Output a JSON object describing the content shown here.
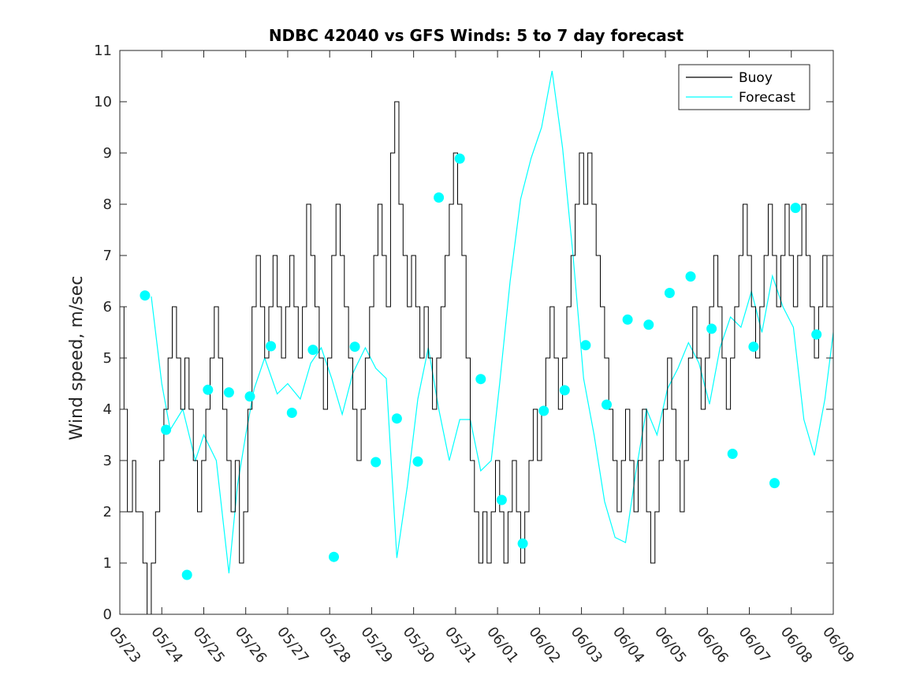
{
  "chart_data": {
    "type": "line",
    "title": "NDBC 42040 vs GFS Winds: 5 to 7 day forecast",
    "xlabel": "",
    "ylabel": "Wind speed, m/sec",
    "x_ticks": [
      "05/23",
      "05/24",
      "05/25",
      "05/26",
      "05/27",
      "05/28",
      "05/29",
      "05/30",
      "05/31",
      "06/01",
      "06/02",
      "06/03",
      "06/04",
      "06/05",
      "06/06",
      "06/07",
      "06/08",
      "06/09"
    ],
    "y_ticks": [
      "0",
      "1",
      "2",
      "3",
      "4",
      "5",
      "6",
      "7",
      "8",
      "9",
      "10",
      "11"
    ],
    "xlim": [
      0,
      17
    ],
    "ylim": [
      0,
      11
    ],
    "grid": false,
    "legend_position": "top-right",
    "legend": [
      "Buoy",
      "Forecast"
    ],
    "colors": {
      "buoy": "#000000",
      "forecast": "#00FFFF",
      "axis": "#262626"
    },
    "series": [
      {
        "name": "Buoy",
        "type": "line",
        "note_units": "x in days since 05/23 00:00",
        "points": [
          [
            0.0,
            6
          ],
          [
            0.1,
            4
          ],
          [
            0.18,
            2
          ],
          [
            0.3,
            3
          ],
          [
            0.38,
            2
          ],
          [
            0.55,
            1
          ],
          [
            0.65,
            0
          ],
          [
            0.75,
            1
          ],
          [
            0.85,
            2
          ],
          [
            0.95,
            3
          ],
          [
            1.05,
            4
          ],
          [
            1.15,
            5
          ],
          [
            1.25,
            6
          ],
          [
            1.35,
            5
          ],
          [
            1.45,
            4
          ],
          [
            1.55,
            5
          ],
          [
            1.65,
            4
          ],
          [
            1.75,
            3
          ],
          [
            1.85,
            2
          ],
          [
            1.95,
            3
          ],
          [
            2.05,
            4
          ],
          [
            2.15,
            5
          ],
          [
            2.25,
            6
          ],
          [
            2.35,
            5
          ],
          [
            2.45,
            4
          ],
          [
            2.55,
            3
          ],
          [
            2.65,
            2
          ],
          [
            2.75,
            3
          ],
          [
            2.85,
            1
          ],
          [
            2.95,
            2
          ],
          [
            3.05,
            4
          ],
          [
            3.15,
            6
          ],
          [
            3.25,
            7
          ],
          [
            3.35,
            6
          ],
          [
            3.45,
            5
          ],
          [
            3.55,
            6
          ],
          [
            3.65,
            7
          ],
          [
            3.75,
            6
          ],
          [
            3.85,
            5
          ],
          [
            3.95,
            6
          ],
          [
            4.05,
            7
          ],
          [
            4.15,
            6
          ],
          [
            4.25,
            5
          ],
          [
            4.35,
            6
          ],
          [
            4.45,
            8
          ],
          [
            4.55,
            7
          ],
          [
            4.65,
            6
          ],
          [
            4.75,
            5
          ],
          [
            4.85,
            4
          ],
          [
            4.95,
            5
          ],
          [
            5.05,
            7
          ],
          [
            5.15,
            8
          ],
          [
            5.25,
            7
          ],
          [
            5.35,
            6
          ],
          [
            5.45,
            5
          ],
          [
            5.55,
            4
          ],
          [
            5.65,
            3
          ],
          [
            5.75,
            4
          ],
          [
            5.85,
            5
          ],
          [
            5.95,
            6
          ],
          [
            6.05,
            7
          ],
          [
            6.15,
            8
          ],
          [
            6.25,
            7
          ],
          [
            6.35,
            6
          ],
          [
            6.45,
            9
          ],
          [
            6.55,
            10
          ],
          [
            6.65,
            8
          ],
          [
            6.75,
            7
          ],
          [
            6.85,
            6
          ],
          [
            6.95,
            7
          ],
          [
            7.05,
            6
          ],
          [
            7.15,
            5
          ],
          [
            7.25,
            6
          ],
          [
            7.35,
            5
          ],
          [
            7.45,
            4
          ],
          [
            7.55,
            5
          ],
          [
            7.65,
            6
          ],
          [
            7.75,
            7
          ],
          [
            7.85,
            8
          ],
          [
            7.95,
            9
          ],
          [
            8.05,
            8
          ],
          [
            8.15,
            7
          ],
          [
            8.25,
            5
          ],
          [
            8.35,
            3
          ],
          [
            8.45,
            2
          ],
          [
            8.55,
            1
          ],
          [
            8.65,
            2
          ],
          [
            8.75,
            1
          ],
          [
            8.85,
            2
          ],
          [
            8.95,
            3
          ],
          [
            9.05,
            2
          ],
          [
            9.15,
            1
          ],
          [
            9.25,
            2
          ],
          [
            9.35,
            3
          ],
          [
            9.45,
            2
          ],
          [
            9.55,
            1
          ],
          [
            9.65,
            2
          ],
          [
            9.75,
            3
          ],
          [
            9.85,
            4
          ],
          [
            9.95,
            3
          ],
          [
            10.05,
            4
          ],
          [
            10.15,
            5
          ],
          [
            10.25,
            6
          ],
          [
            10.35,
            5
          ],
          [
            10.45,
            4
          ],
          [
            10.55,
            5
          ],
          [
            10.65,
            6
          ],
          [
            10.75,
            7
          ],
          [
            10.85,
            8
          ],
          [
            10.95,
            9
          ],
          [
            11.05,
            8
          ],
          [
            11.15,
            9
          ],
          [
            11.25,
            8
          ],
          [
            11.35,
            7
          ],
          [
            11.45,
            6
          ],
          [
            11.55,
            5
          ],
          [
            11.65,
            4
          ],
          [
            11.75,
            3
          ],
          [
            11.85,
            2
          ],
          [
            11.95,
            3
          ],
          [
            12.05,
            4
          ],
          [
            12.15,
            3
          ],
          [
            12.25,
            2
          ],
          [
            12.35,
            3
          ],
          [
            12.45,
            4
          ],
          [
            12.55,
            2
          ],
          [
            12.65,
            1
          ],
          [
            12.75,
            2
          ],
          [
            12.85,
            3
          ],
          [
            12.95,
            4
          ],
          [
            13.05,
            5
          ],
          [
            13.15,
            4
          ],
          [
            13.25,
            3
          ],
          [
            13.35,
            2
          ],
          [
            13.45,
            3
          ],
          [
            13.55,
            5
          ],
          [
            13.65,
            6
          ],
          [
            13.75,
            5
          ],
          [
            13.85,
            4
          ],
          [
            13.95,
            5
          ],
          [
            14.05,
            6
          ],
          [
            14.15,
            7
          ],
          [
            14.25,
            6
          ],
          [
            14.35,
            5
          ],
          [
            14.45,
            4
          ],
          [
            14.55,
            5
          ],
          [
            14.65,
            6
          ],
          [
            14.75,
            7
          ],
          [
            14.85,
            8
          ],
          [
            14.95,
            7
          ],
          [
            15.05,
            6
          ],
          [
            15.15,
            5
          ],
          [
            15.25,
            6
          ],
          [
            15.35,
            7
          ],
          [
            15.45,
            8
          ],
          [
            15.55,
            7
          ],
          [
            15.65,
            6
          ],
          [
            15.75,
            7
          ],
          [
            15.85,
            8
          ],
          [
            15.95,
            7
          ],
          [
            16.05,
            6
          ],
          [
            16.15,
            7
          ],
          [
            16.25,
            8
          ],
          [
            16.35,
            7
          ],
          [
            16.45,
            6
          ],
          [
            16.55,
            5
          ],
          [
            16.65,
            6
          ],
          [
            16.75,
            7
          ],
          [
            16.85,
            6
          ],
          [
            17.0,
            6
          ]
        ]
      },
      {
        "name": "Forecast",
        "type": "line",
        "note_units": "x in days since 05/23 00:00",
        "points": [
          [
            0.75,
            6.2
          ],
          [
            1.0,
            4.5
          ],
          [
            1.2,
            3.6
          ],
          [
            1.5,
            4.0
          ],
          [
            1.8,
            3.0
          ],
          [
            2.0,
            3.5
          ],
          [
            2.3,
            3.0
          ],
          [
            2.6,
            0.8
          ],
          [
            2.8,
            2.5
          ],
          [
            3.0,
            3.5
          ],
          [
            3.2,
            4.4
          ],
          [
            3.45,
            5.0
          ],
          [
            3.75,
            4.3
          ],
          [
            4.0,
            4.5
          ],
          [
            4.3,
            4.2
          ],
          [
            4.55,
            4.9
          ],
          [
            4.8,
            5.2
          ],
          [
            5.05,
            4.6
          ],
          [
            5.3,
            3.9
          ],
          [
            5.55,
            4.7
          ],
          [
            5.85,
            5.2
          ],
          [
            6.1,
            4.8
          ],
          [
            6.35,
            4.6
          ],
          [
            6.6,
            1.1
          ],
          [
            6.85,
            2.5
          ],
          [
            7.1,
            4.2
          ],
          [
            7.35,
            5.2
          ],
          [
            7.6,
            4.0
          ],
          [
            7.85,
            3.0
          ],
          [
            8.1,
            3.8
          ],
          [
            8.35,
            3.8
          ],
          [
            8.6,
            2.8
          ],
          [
            8.85,
            3.0
          ],
          [
            9.05,
            4.5
          ],
          [
            9.3,
            6.5
          ],
          [
            9.55,
            8.1
          ],
          [
            9.8,
            8.9
          ],
          [
            10.05,
            9.5
          ],
          [
            10.3,
            10.6
          ],
          [
            10.55,
            9.1
          ],
          [
            10.8,
            7.0
          ],
          [
            11.05,
            4.6
          ],
          [
            11.3,
            3.5
          ],
          [
            11.55,
            2.2
          ],
          [
            11.8,
            1.5
          ],
          [
            12.05,
            1.4
          ],
          [
            12.3,
            2.8
          ],
          [
            12.55,
            4.0
          ],
          [
            12.8,
            3.5
          ],
          [
            13.05,
            4.4
          ],
          [
            13.3,
            4.8
          ],
          [
            13.55,
            5.3
          ],
          [
            13.8,
            4.9
          ],
          [
            14.05,
            4.1
          ],
          [
            14.3,
            5.2
          ],
          [
            14.55,
            5.8
          ],
          [
            14.8,
            5.6
          ],
          [
            15.05,
            6.3
          ],
          [
            15.3,
            5.5
          ],
          [
            15.55,
            6.6
          ],
          [
            15.8,
            6.0
          ],
          [
            16.05,
            5.6
          ],
          [
            16.3,
            3.8
          ],
          [
            16.55,
            3.1
          ],
          [
            16.8,
            4.2
          ],
          [
            17.0,
            5.5
          ]
        ]
      },
      {
        "name": "Forecast",
        "type": "scatter",
        "markers": true,
        "note_units": "x in days since 05/23 00:00",
        "points": [
          [
            0.6,
            6.22
          ],
          [
            1.1,
            3.6
          ],
          [
            1.6,
            0.77
          ],
          [
            2.1,
            4.38
          ],
          [
            2.6,
            4.33
          ],
          [
            3.1,
            4.25
          ],
          [
            3.6,
            5.23
          ],
          [
            4.1,
            3.93
          ],
          [
            4.6,
            5.16
          ],
          [
            5.1,
            1.12
          ],
          [
            5.6,
            5.22
          ],
          [
            6.1,
            2.97
          ],
          [
            6.6,
            3.82
          ],
          [
            7.1,
            2.98
          ],
          [
            7.6,
            8.13
          ],
          [
            8.1,
            8.89
          ],
          [
            8.6,
            4.59
          ],
          [
            9.1,
            2.23
          ],
          [
            9.6,
            1.38
          ],
          [
            10.1,
            3.97
          ],
          [
            10.6,
            4.37
          ],
          [
            11.1,
            5.25
          ],
          [
            11.6,
            4.09
          ],
          [
            12.1,
            5.75
          ],
          [
            12.6,
            5.65
          ],
          [
            13.1,
            6.27
          ],
          [
            13.6,
            6.59
          ],
          [
            14.1,
            5.57
          ],
          [
            14.6,
            3.13
          ],
          [
            15.1,
            5.22
          ],
          [
            15.6,
            2.56
          ],
          [
            16.1,
            7.93
          ],
          [
            16.6,
            5.46
          ]
        ]
      }
    ]
  }
}
